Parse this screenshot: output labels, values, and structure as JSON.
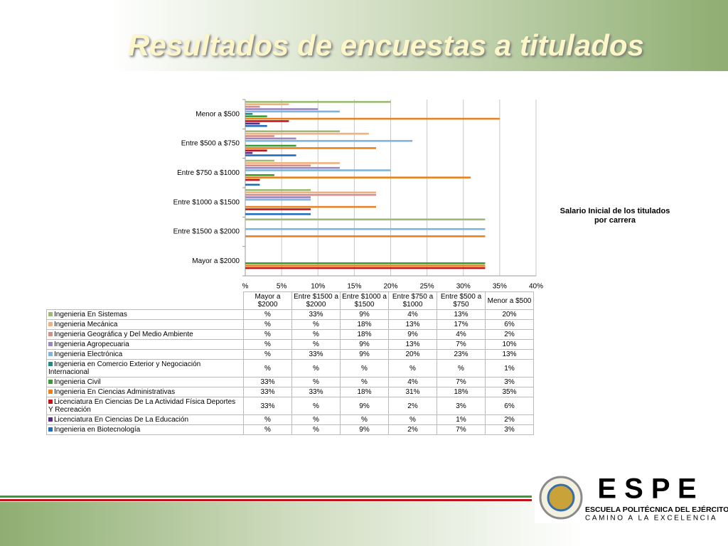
{
  "title": "Resultados de encuestas a titulados",
  "chart_data": {
    "type": "bar",
    "orientation": "horizontal",
    "title": "Salario Inicial de los titulados por carrera",
    "categories": [
      "Mayor a $2000",
      "Entre $1500 a $2000",
      "Entre $1000 a $1500",
      "Entre $750 a $1000",
      "Entre $500 a $750",
      "Menor a $500"
    ],
    "xlim": [
      0,
      40
    ],
    "xticks": [
      {
        "value": 0,
        "label": "%"
      },
      {
        "value": 5,
        "label": "5%"
      },
      {
        "value": 10,
        "label": "10%"
      },
      {
        "value": 15,
        "label": "15%"
      },
      {
        "value": 20,
        "label": "20%"
      },
      {
        "value": 25,
        "label": "25%"
      },
      {
        "value": 30,
        "label": "30%"
      },
      {
        "value": 35,
        "label": "35%"
      },
      {
        "value": 40,
        "label": "40%"
      }
    ],
    "grid": true,
    "series": [
      {
        "name": "Ingenieria En Sistemas",
        "color": "#9cba74",
        "values": [
          null,
          33,
          9,
          4,
          13,
          20
        ],
        "value_labels": [
          "%",
          "33%",
          "9%",
          "4%",
          "13%",
          "20%"
        ]
      },
      {
        "name": "Ingenieria Mecánica",
        "color": "#f2b07c",
        "values": [
          null,
          null,
          18,
          13,
          17,
          6
        ],
        "value_labels": [
          "%",
          "%",
          "18%",
          "13%",
          "17%",
          "6%"
        ]
      },
      {
        "name": "Ingenieria Geográfica y Del Medio Ambiente",
        "color": "#d58d86",
        "values": [
          null,
          null,
          18,
          9,
          4,
          2
        ],
        "value_labels": [
          "%",
          "%",
          "18%",
          "9%",
          "4%",
          "2%"
        ]
      },
      {
        "name": "Ingenieria Agropecuaria",
        "color": "#9b86bd",
        "values": [
          null,
          null,
          9,
          13,
          7,
          10
        ],
        "value_labels": [
          "%",
          "%",
          "9%",
          "13%",
          "7%",
          "10%"
        ]
      },
      {
        "name": "Ingenieria Electrónica",
        "color": "#7db4de",
        "values": [
          null,
          33,
          9,
          20,
          23,
          13
        ],
        "value_labels": [
          "%",
          "33%",
          "9%",
          "20%",
          "23%",
          "13%"
        ]
      },
      {
        "name": "Ingenieria en Comercio Exterior y Negociación Internacional",
        "color": "#1f8a86",
        "values": [
          null,
          null,
          null,
          null,
          null,
          1
        ],
        "value_labels": [
          "%",
          "%",
          "%",
          "%",
          "%",
          "1%"
        ]
      },
      {
        "name": "Ingenieria Civil",
        "color": "#3c9a32",
        "values": [
          33,
          null,
          null,
          4,
          7,
          3
        ],
        "value_labels": [
          "33%",
          "%",
          "%",
          "4%",
          "7%",
          "3%"
        ]
      },
      {
        "name": "Ingenieria En Ciencias Administrativas",
        "color": "#e8821e",
        "values": [
          33,
          33,
          18,
          31,
          18,
          35
        ],
        "value_labels": [
          "33%",
          "33%",
          "18%",
          "31%",
          "18%",
          "35%"
        ]
      },
      {
        "name": "Licenciatura En Ciencias De La Actividad Física Deportes Y Recreación",
        "color": "#c0141c",
        "values": [
          33,
          null,
          9,
          2,
          3,
          6
        ],
        "value_labels": [
          "33%",
          "%",
          "9%",
          "2%",
          "3%",
          "6%"
        ]
      },
      {
        "name": "Licenciatura En Ciencias De La Educación",
        "color": "#5a2a8a",
        "values": [
          null,
          null,
          null,
          null,
          1,
          2
        ],
        "value_labels": [
          "%",
          "%",
          "%",
          "%",
          "1%",
          "2%"
        ]
      },
      {
        "name": "Ingenieria en Biotecnología",
        "color": "#1f6db8",
        "values": [
          null,
          null,
          9,
          2,
          7,
          3
        ],
        "value_labels": [
          "%",
          "%",
          "9%",
          "2%",
          "7%",
          "3%"
        ]
      }
    ]
  },
  "logo": {
    "brand": "E S P E",
    "name": "ESCUELA POLITÉCNICA DEL EJÉRCITO",
    "motto": "CAMINO A LA EXCELENCIA"
  }
}
